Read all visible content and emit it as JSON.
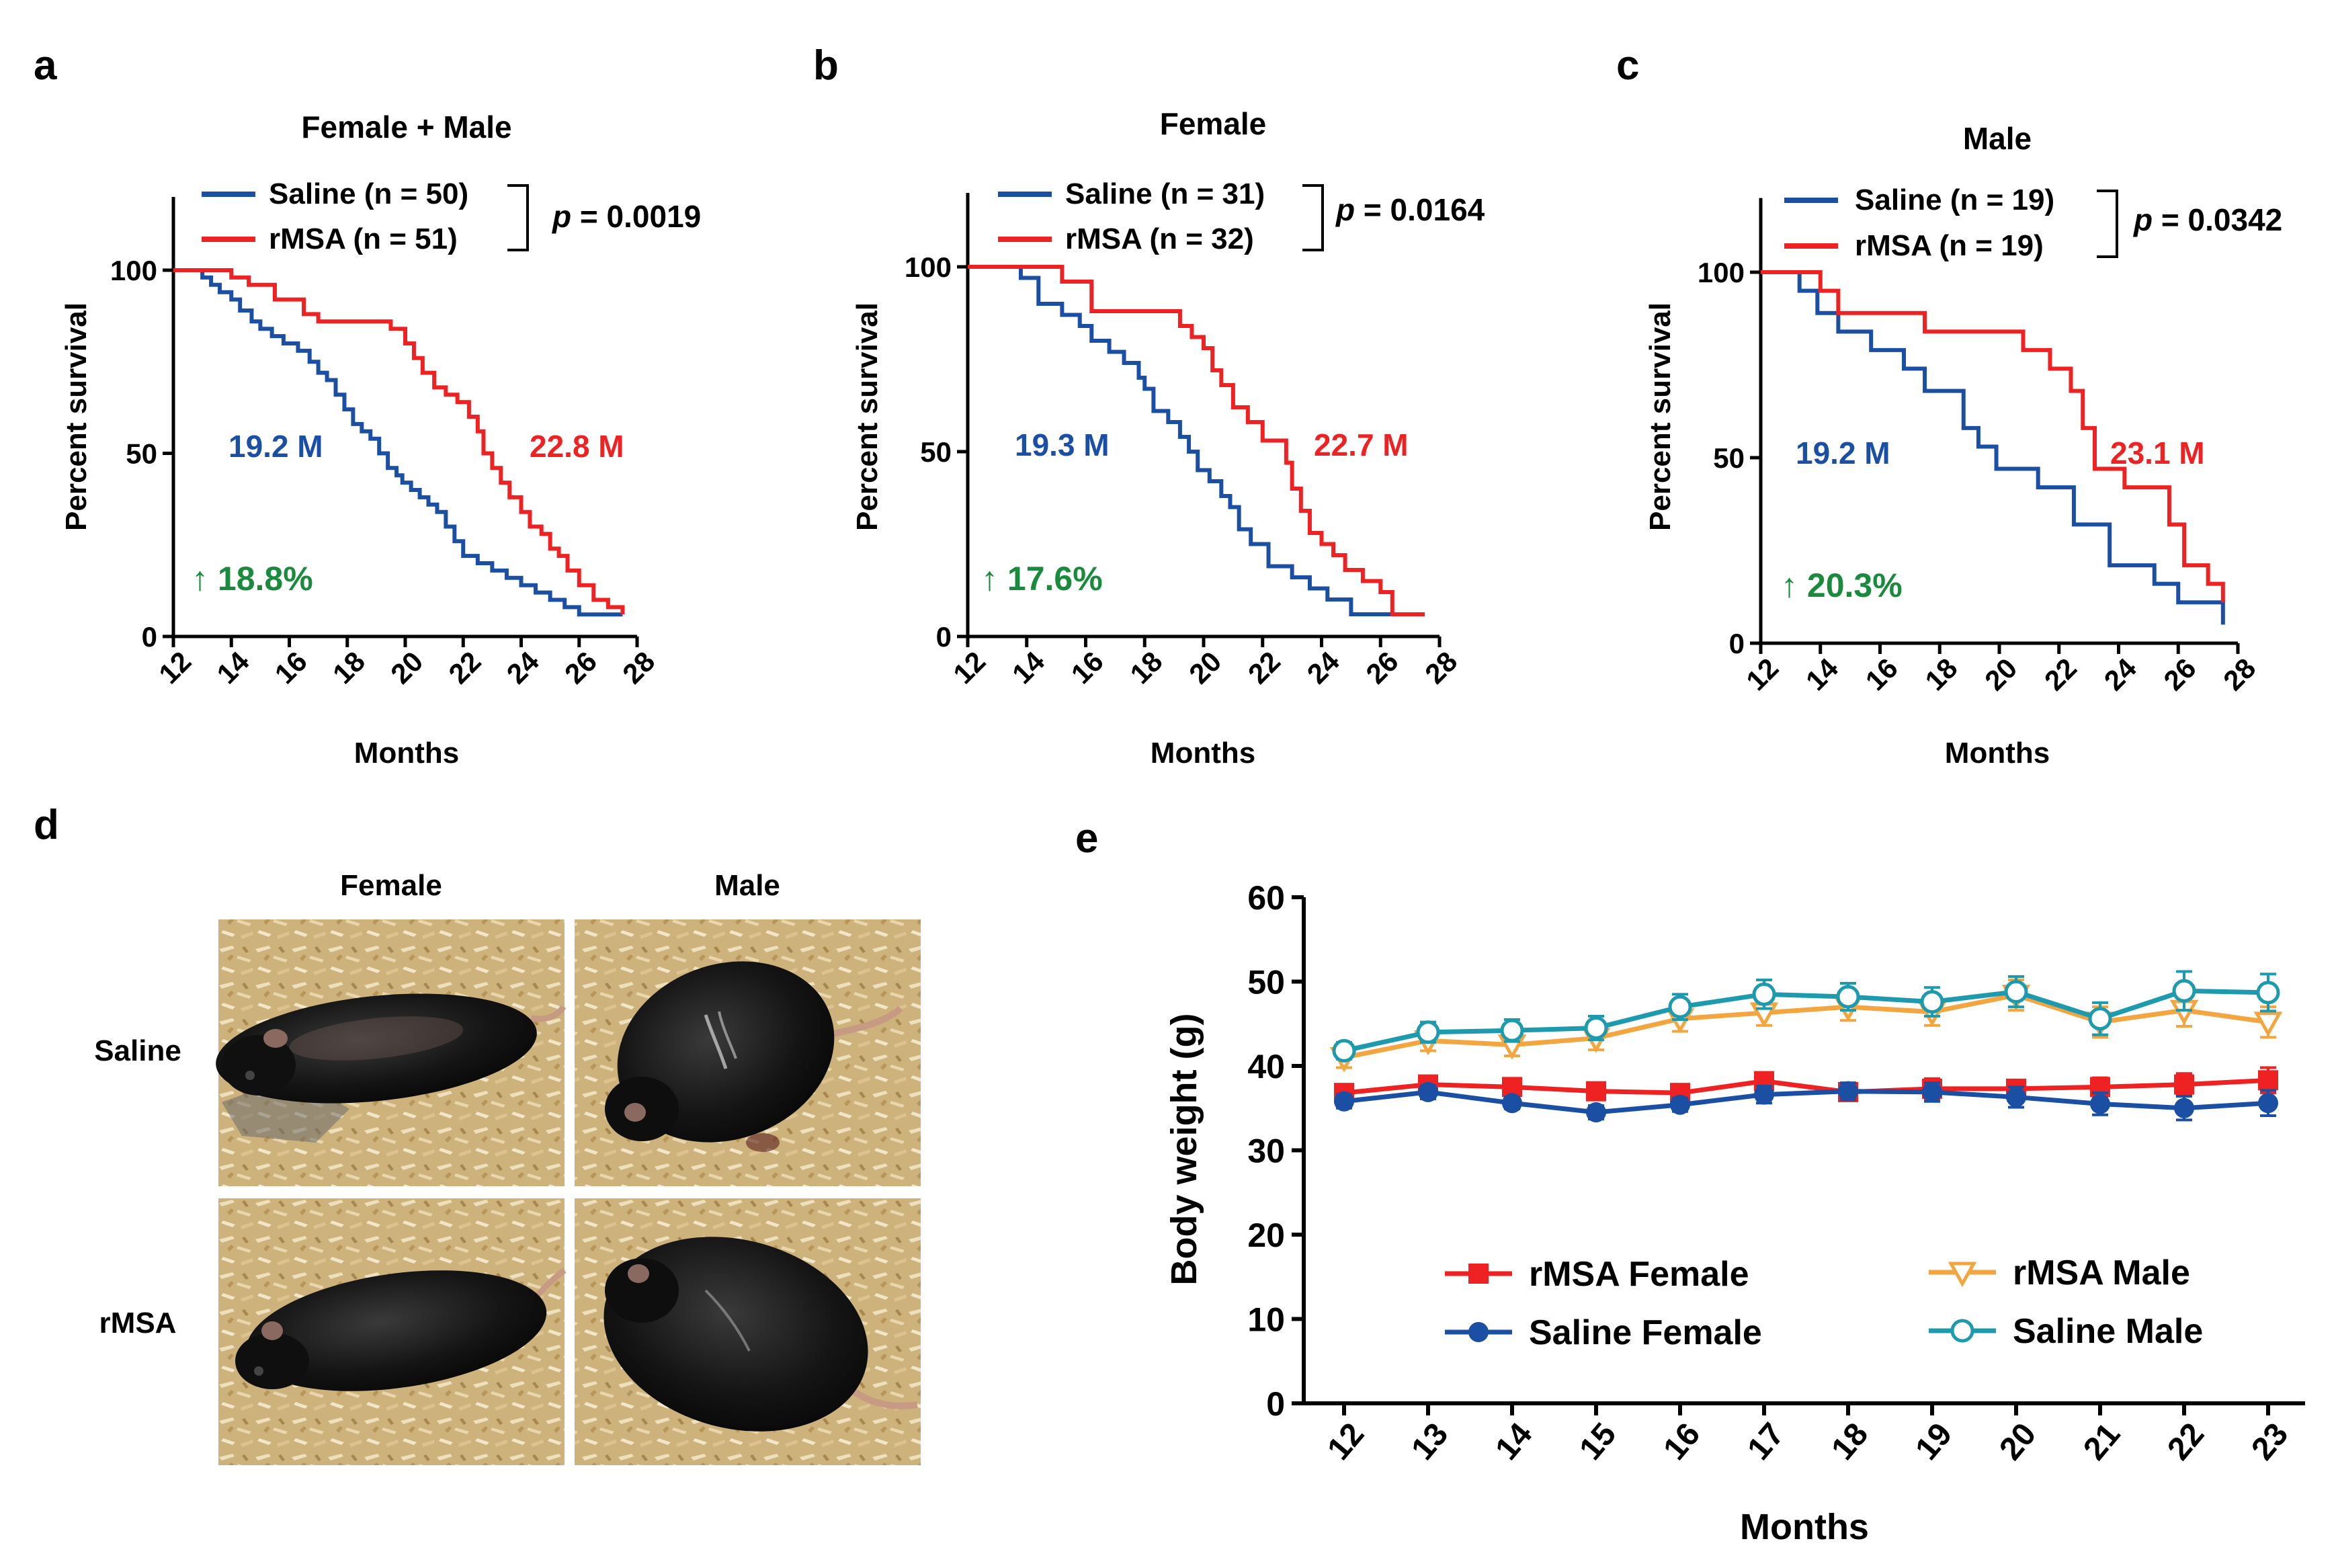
{
  "figure": {
    "panel_letters": [
      "a",
      "b",
      "c",
      "d",
      "e"
    ]
  },
  "colors": {
    "saline": "#1a4fa3",
    "rmsa": "#ee2222",
    "increase": "#1a8a3c",
    "rmsa_male": "#f3a640",
    "saline_male": "#1d9aae",
    "axis": "#000000"
  },
  "chart_data": [
    {
      "type": "line",
      "kind": "kaplan-meier",
      "panel": "a",
      "title": "Female + Male",
      "xlabel": "Months",
      "ylabel": "Percent survival",
      "xlim": [
        12,
        28
      ],
      "ylim": [
        0,
        120
      ],
      "xticks": [
        "12",
        "14",
        "16",
        "18",
        "20",
        "22",
        "24",
        "26",
        "28"
      ],
      "yticks": [
        "0",
        "50",
        "100"
      ],
      "legend": [
        "Saline (n = 50)",
        "rMSA (n = 51)"
      ],
      "p_label": "p",
      "p_value": " = 0.0019",
      "series": [
        {
          "name": "Saline (n = 50)",
          "color_key": "saline",
          "x": [
            12,
            12.8,
            13,
            13.3,
            13.6,
            14,
            14.3,
            14.7,
            15,
            15.4,
            15.8,
            16.3,
            16.7,
            17,
            17.3,
            17.6,
            17.9,
            18.2,
            18.5,
            18.8,
            19.1,
            19.4,
            19.7,
            19.9,
            20.2,
            20.5,
            20.8,
            21.1,
            21.4,
            21.7,
            22,
            22.5,
            23,
            23.5,
            24,
            24.5,
            25,
            25.5,
            26,
            26.5,
            27.5
          ],
          "y": [
            100,
            100,
            98,
            96,
            94,
            92,
            89,
            86,
            84,
            82,
            80,
            78,
            75,
            72,
            70,
            66,
            62,
            58,
            56,
            54,
            50,
            46,
            44,
            42,
            40,
            38,
            36,
            34,
            30,
            26,
            22,
            20,
            18,
            16,
            14,
            12,
            10,
            8,
            6,
            6,
            6
          ]
        },
        {
          "name": "rMSA (n = 51)",
          "color_key": "rmsa",
          "x": [
            12,
            13,
            14,
            14.6,
            15.5,
            16.5,
            17,
            18,
            19,
            19.5,
            20,
            20.3,
            20.6,
            21,
            21.4,
            21.8,
            22.2,
            22.5,
            22.7,
            23,
            23.3,
            23.6,
            24,
            24.3,
            24.7,
            25,
            25.3,
            25.6,
            26,
            26.5,
            27,
            27.5
          ],
          "y": [
            100,
            100,
            98,
            96,
            92,
            88,
            86,
            86,
            86,
            84,
            80,
            76,
            72,
            68,
            66,
            64,
            60,
            56,
            50,
            46,
            42,
            38,
            34,
            30,
            28,
            24,
            22,
            18,
            14,
            10,
            8,
            6
          ]
        }
      ],
      "annotations": {
        "saline_median": "19.2 M",
        "rmsa_median": "22.8 M",
        "increase": "↑ 18.8%"
      }
    },
    {
      "type": "line",
      "kind": "kaplan-meier",
      "panel": "b",
      "title": "Female",
      "xlabel": "Months",
      "ylabel": "Percent survival",
      "xlim": [
        12,
        28
      ],
      "ylim": [
        0,
        120
      ],
      "xticks": [
        "12",
        "14",
        "16",
        "18",
        "20",
        "22",
        "24",
        "26",
        "28"
      ],
      "yticks": [
        "0",
        "50",
        "100"
      ],
      "legend": [
        "Saline (n = 31)",
        "rMSA (n = 32)"
      ],
      "p_label": "p",
      "p_value": " = 0.0164",
      "series": [
        {
          "name": "Saline (n = 31)",
          "color_key": "saline",
          "x": [
            12,
            13.5,
            13.8,
            14.4,
            15.2,
            15.8,
            16.2,
            16.8,
            17.3,
            17.8,
            18,
            18.3,
            18.8,
            19.2,
            19.5,
            19.8,
            20.2,
            20.6,
            20.9,
            21.2,
            21.6,
            22.2,
            23,
            23.6,
            24.2,
            25,
            26,
            27.5
          ],
          "y": [
            100,
            100,
            97,
            90,
            87,
            84,
            80,
            77,
            74,
            70,
            67,
            61,
            58,
            54,
            50,
            45,
            42,
            38,
            35,
            29,
            25,
            19,
            16,
            13,
            10,
            6,
            6,
            6
          ]
        },
        {
          "name": "rMSA (n = 32)",
          "color_key": "rmsa",
          "x": [
            12,
            14.8,
            15.2,
            16.2,
            17.5,
            18.8,
            19.2,
            19.6,
            20,
            20.3,
            20.6,
            21,
            21.5,
            22,
            22.5,
            22.8,
            23,
            23.3,
            23.6,
            24,
            24.4,
            24.8,
            25.4,
            26,
            26.4,
            27.5
          ],
          "y": [
            100,
            100,
            96,
            88,
            88,
            88,
            84,
            81,
            78,
            72,
            68,
            62,
            58,
            53,
            53,
            47,
            40,
            34,
            28,
            25,
            22,
            18,
            15,
            12,
            6,
            6
          ]
        }
      ],
      "annotations": {
        "saline_median": "19.3 M",
        "rmsa_median": "22.7 M",
        "increase": "↑ 17.6%"
      }
    },
    {
      "type": "line",
      "kind": "kaplan-meier",
      "panel": "c",
      "title": "Male",
      "xlabel": "Months",
      "ylabel": "Percent survival",
      "xlim": [
        12,
        28
      ],
      "ylim": [
        0,
        120
      ],
      "xticks": [
        "12",
        "14",
        "16",
        "18",
        "20",
        "22",
        "24",
        "26",
        "28"
      ],
      "yticks": [
        "0",
        "50",
        "100"
      ],
      "legend": [
        "Saline (n = 19)",
        "rMSA (n = 19)"
      ],
      "p_label": "p",
      "p_value": " = 0.0342",
      "series": [
        {
          "name": "Saline (n = 19)",
          "color_key": "saline",
          "x": [
            12,
            13,
            13.3,
            13.9,
            14.6,
            15.7,
            16.8,
            17.5,
            18.8,
            19.3,
            19.9,
            21.3,
            22.5,
            23.7,
            24.5,
            25.2,
            26,
            27.5
          ],
          "y": [
            100,
            100,
            95,
            89,
            84,
            79,
            74,
            68,
            58,
            53,
            47,
            42,
            32,
            21,
            21,
            16,
            11,
            5
          ]
        },
        {
          "name": "rMSA (n = 19)",
          "color_key": "rmsa",
          "x": [
            12,
            13,
            14,
            14.6,
            16.6,
            17.5,
            18.8,
            20.3,
            20.8,
            21.7,
            22.4,
            22.8,
            23.2,
            24.2,
            25.3,
            25.7,
            26.2,
            27,
            27.5
          ],
          "y": [
            100,
            100,
            95,
            89,
            89,
            84,
            84,
            84,
            79,
            74,
            68,
            58,
            47,
            42,
            42,
            32,
            21,
            16,
            11
          ]
        }
      ],
      "annotations": {
        "saline_median": "19.2 M",
        "rmsa_median": "23.1 M",
        "increase": "↑ 20.3%"
      }
    },
    {
      "type": "line",
      "panel": "e",
      "xlabel": "Months",
      "ylabel": "Body weight (g)",
      "x": [
        12,
        13,
        14,
        15,
        16,
        17,
        18,
        19,
        20,
        21,
        22,
        23
      ],
      "xticks": [
        "12",
        "13",
        "14",
        "15",
        "16",
        "17",
        "18",
        "19",
        "20",
        "21",
        "22",
        "23"
      ],
      "yticks": [
        "0",
        "10",
        "20",
        "30",
        "40",
        "50",
        "60"
      ],
      "ylim": [
        0,
        60
      ],
      "series": [
        {
          "name": "rMSA Female",
          "color_key": "rmsa",
          "marker": "square",
          "values": [
            36.8,
            37.8,
            37.5,
            37.0,
            36.8,
            38.2,
            36.9,
            37.3,
            37.3,
            37.5,
            37.8,
            38.3
          ],
          "err": [
            0.8,
            0.8,
            0.7,
            0.7,
            0.7,
            0.9,
            0.8,
            1.2,
            1.0,
            1.1,
            1.3,
            1.5
          ]
        },
        {
          "name": "Saline Female",
          "color_key": "saline",
          "marker": "circle",
          "values": [
            35.8,
            36.9,
            35.6,
            34.5,
            35.4,
            36.6,
            37.0,
            36.9,
            36.3,
            35.5,
            35.0,
            35.6
          ],
          "err": [
            0.8,
            0.8,
            0.7,
            0.8,
            0.8,
            1.0,
            1.0,
            1.1,
            1.2,
            1.3,
            1.4,
            1.5
          ]
        },
        {
          "name": "rMSA Male",
          "color_key": "rmsa_male",
          "marker": "triangle-down",
          "values": [
            41.0,
            43.0,
            42.5,
            43.3,
            45.6,
            46.3,
            47.0,
            46.4,
            48.4,
            45.2,
            46.6,
            45.2
          ],
          "err": [
            1.2,
            1.2,
            1.3,
            1.4,
            1.5,
            1.5,
            1.6,
            1.6,
            1.8,
            1.8,
            1.9,
            1.8
          ]
        },
        {
          "name": "Saline Male",
          "color_key": "saline_male",
          "marker": "circle-open",
          "values": [
            41.8,
            44.0,
            44.2,
            44.5,
            47.0,
            48.5,
            48.2,
            47.6,
            48.8,
            45.6,
            48.9,
            48.7
          ],
          "err": [
            1.0,
            1.2,
            1.3,
            1.4,
            1.5,
            1.7,
            1.6,
            1.7,
            1.8,
            1.9,
            2.3,
            2.2
          ]
        }
      ]
    }
  ],
  "photos": {
    "column_labels": [
      "Female",
      "Male"
    ],
    "row_labels": [
      "Saline",
      "rMSA"
    ]
  }
}
